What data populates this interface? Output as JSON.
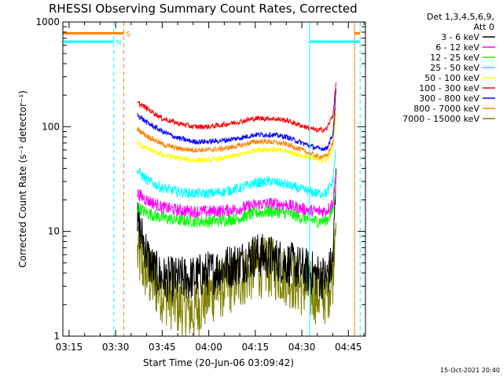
{
  "chart_data": {
    "type": "line",
    "title": "RHESSI Observing Summary Count Rates, Corrected",
    "xlabel": "Start Time (20-Jun-06 03:09:42)",
    "ylabel": "Corrected Count Rate (s⁻¹ detector⁻¹)",
    "yscale": "log",
    "ylim": [
      1,
      1000
    ],
    "xlim_minutes": [
      3.0,
      100.5
    ],
    "x_ticks": [
      {
        "m": 5,
        "label": "03:15"
      },
      {
        "m": 20,
        "label": "03:30"
      },
      {
        "m": 35,
        "label": "03:45"
      },
      {
        "m": 50,
        "label": "04:00"
      },
      {
        "m": 65,
        "label": "04:15"
      },
      {
        "m": 80,
        "label": "04:30"
      },
      {
        "m": 95,
        "label": "04:45"
      }
    ],
    "y_ticks": [
      {
        "v": 1,
        "label": "1"
      },
      {
        "v": 10,
        "label": "10"
      },
      {
        "v": 100,
        "label": "100"
      },
      {
        "v": 1000,
        "label": "1000"
      }
    ],
    "legend": {
      "header": [
        "Det 1,3,4,5,6,9,",
        "Att 0"
      ],
      "position": "right"
    },
    "series": [
      {
        "name": "3 - 6 keV",
        "color": "#000000",
        "x": [
          27,
          29,
          31,
          33,
          36,
          40,
          45,
          50,
          55,
          60,
          65,
          70,
          75,
          80,
          85,
          88,
          90,
          91
        ],
        "y": [
          12,
          8,
          5,
          4,
          3.5,
          3.5,
          3.6,
          4,
          4.5,
          5,
          6,
          5.6,
          5,
          4.4,
          3.8,
          3.6,
          5,
          30
        ],
        "noise": 0.22
      },
      {
        "name": "6 - 12 keV",
        "color": "#ff00ff",
        "x": [
          27,
          30,
          35,
          40,
          45,
          50,
          55,
          60,
          65,
          70,
          75,
          80,
          85,
          88,
          90,
          91
        ],
        "y": [
          23,
          20,
          17,
          16,
          15.5,
          15.5,
          15.8,
          16.5,
          18,
          18.5,
          18,
          16.5,
          15.5,
          15.8,
          19,
          35
        ],
        "noise": 0.06
      },
      {
        "name": "12 - 25 keV",
        "color": "#00ff00",
        "x": [
          27,
          30,
          35,
          40,
          45,
          50,
          55,
          60,
          65,
          70,
          75,
          80,
          85,
          88,
          90,
          91
        ],
        "y": [
          17,
          15,
          13.5,
          12.8,
          12.5,
          12.5,
          12.8,
          13.5,
          15,
          15.5,
          15,
          13.5,
          12.5,
          12.8,
          16,
          30
        ],
        "noise": 0.06
      },
      {
        "name": "25 - 50 keV",
        "color": "#00ffff",
        "x": [
          27,
          30,
          35,
          40,
          45,
          50,
          55,
          60,
          65,
          70,
          75,
          80,
          85,
          88,
          90,
          91
        ],
        "y": [
          38,
          31,
          26,
          24,
          23,
          23,
          24,
          26,
          29,
          30,
          28,
          25,
          23,
          23.5,
          30,
          60
        ],
        "noise": 0.05
      },
      {
        "name": "50 - 100 keV",
        "color": "#ffff00",
        "x": [
          27,
          30,
          35,
          40,
          45,
          50,
          55,
          60,
          65,
          70,
          75,
          80,
          85,
          88,
          90,
          91
        ],
        "y": [
          70,
          62,
          54,
          50,
          48,
          48,
          50,
          54,
          60,
          61,
          58,
          53,
          48,
          48,
          60,
          130
        ],
        "noise": 0.025
      },
      {
        "name": "100 - 300 keV",
        "color": "#ff0000",
        "x": [
          27,
          30,
          35,
          40,
          45,
          50,
          55,
          60,
          65,
          70,
          75,
          80,
          85,
          88,
          90,
          91
        ],
        "y": [
          170,
          150,
          120,
          108,
          100,
          100,
          105,
          112,
          120,
          120,
          115,
          102,
          92,
          95,
          130,
          260
        ],
        "noise": 0.025
      },
      {
        "name": "300 - 800 keV",
        "color": "#0000ff",
        "x": [
          27,
          30,
          35,
          40,
          45,
          50,
          55,
          60,
          65,
          70,
          75,
          80,
          85,
          88,
          90,
          91
        ],
        "y": [
          130,
          110,
          90,
          78,
          72,
          72,
          74,
          78,
          84,
          84,
          80,
          70,
          62,
          62,
          85,
          220
        ],
        "noise": 0.025
      },
      {
        "name": "800 - 7000 keV",
        "color": "#ff8000",
        "x": [
          27,
          30,
          35,
          40,
          45,
          50,
          55,
          60,
          65,
          70,
          75,
          80,
          85,
          88,
          90,
          91
        ],
        "y": [
          95,
          82,
          68,
          62,
          60,
          60,
          62,
          66,
          72,
          72,
          68,
          60,
          52,
          52,
          70,
          160
        ],
        "noise": 0.025
      },
      {
        "name": "7000 - 15000 keV",
        "color": "#808000",
        "x": [
          27,
          29,
          31,
          33,
          36,
          40,
          45,
          50,
          55,
          60,
          65,
          70,
          75,
          80,
          85,
          88,
          90,
          91
        ],
        "y": [
          6,
          4.5,
          3.5,
          3,
          2.5,
          2,
          1.7,
          2.5,
          3,
          3.5,
          4.5,
          4.5,
          3.8,
          3,
          2.5,
          2.5,
          4,
          20
        ],
        "noise": 0.3
      }
    ],
    "flag_bars": [
      {
        "label": "S",
        "color": "#ff8000",
        "level": 780,
        "spans": [
          [
            3.0,
            22.6
          ],
          [
            97.0,
            98.8
          ]
        ]
      },
      {
        "label": "N",
        "color": "#00ffff",
        "level": 650,
        "spans": [
          [
            3.0,
            19.4
          ],
          [
            82.5,
            98.8
          ]
        ]
      }
    ],
    "markers": [
      {
        "m": 19.4,
        "color": "#00ffff",
        "style": "dashed"
      },
      {
        "m": 22.6,
        "color": "#ff8000",
        "style": "dashed"
      },
      {
        "m": 82.5,
        "color": "#00ffff",
        "style": "solid"
      },
      {
        "m": 97.0,
        "color": "#ff8000",
        "style": "solid"
      },
      {
        "m": 98.8,
        "color": "#00ffff",
        "style": "dashed"
      }
    ],
    "grid": false
  },
  "timestamp": "15-Oct-2021 20:40"
}
